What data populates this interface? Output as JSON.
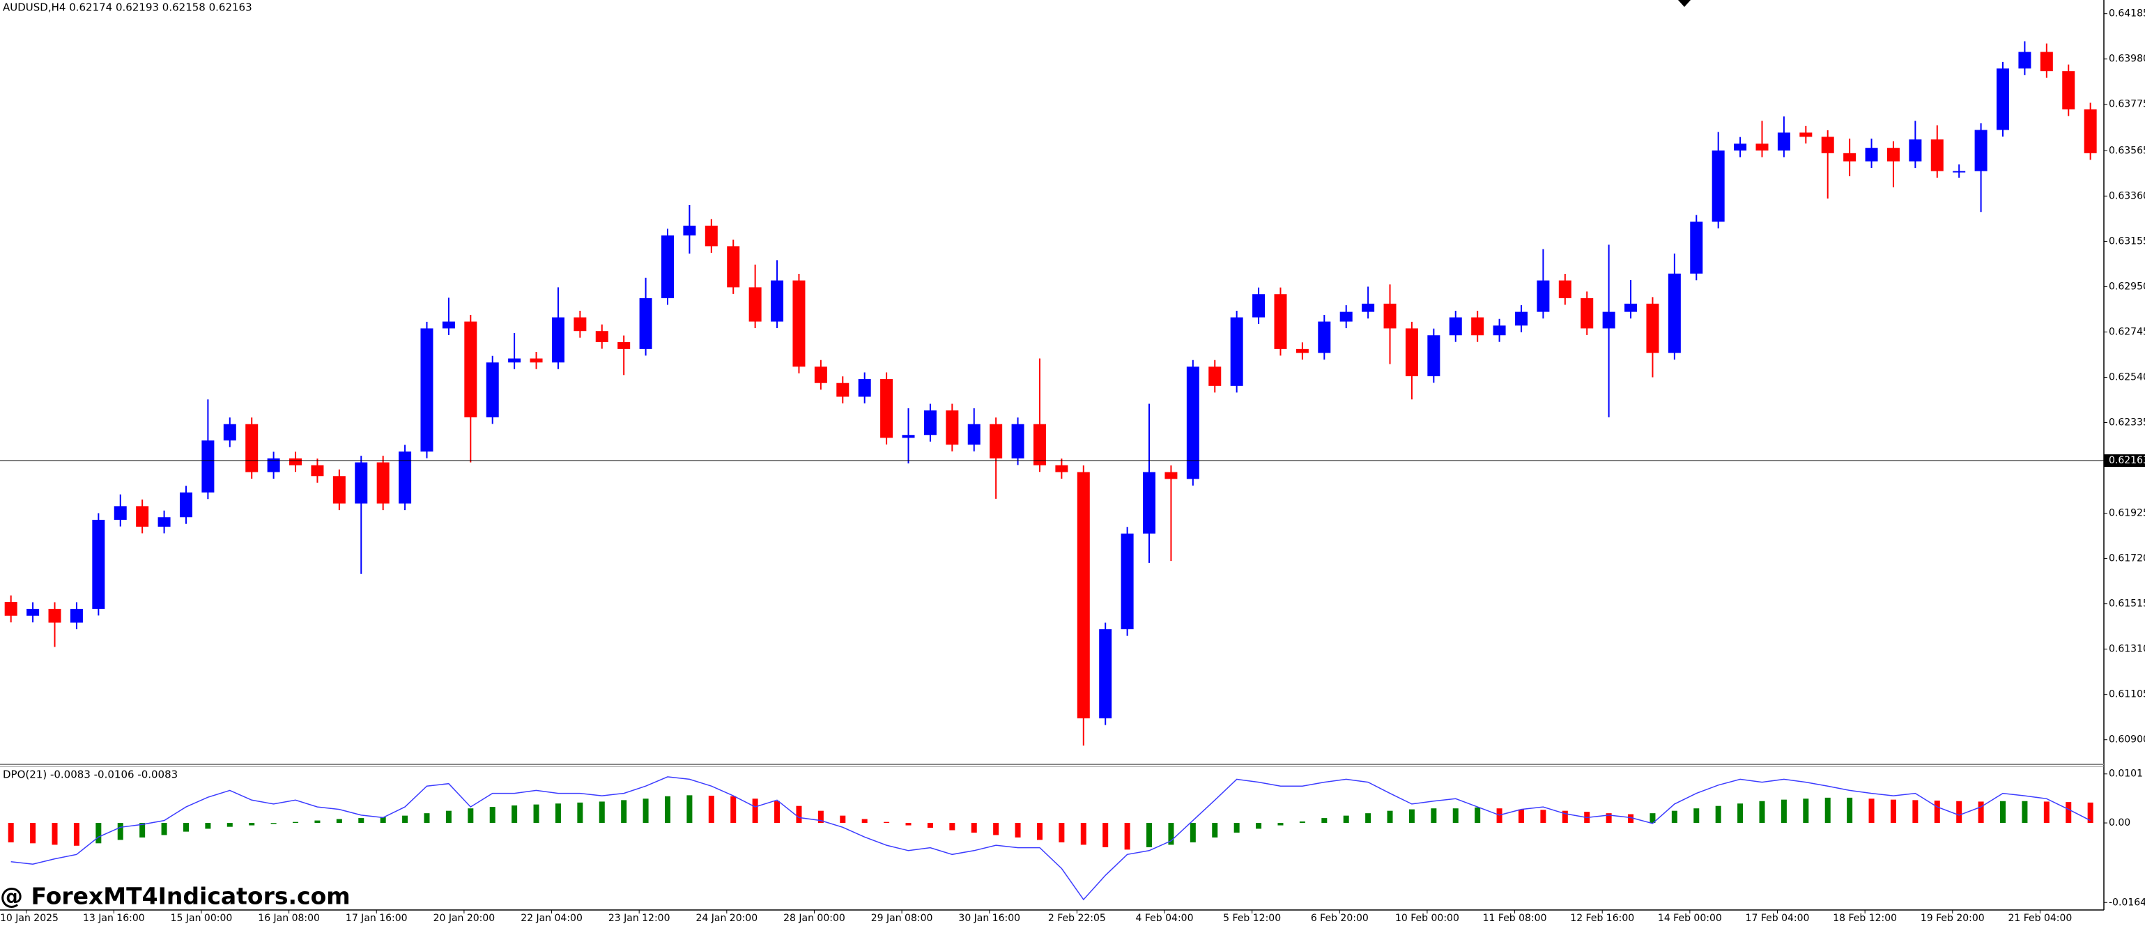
{
  "chart_data": [
    {
      "type": "candlestick",
      "title": "AUDUSD,H4  0.62174 0.62193 0.62158 0.62163",
      "up_color": "#0000ff",
      "down_color": "#ff0000",
      "first_open": 0.61523,
      "close": [
        0.61461,
        0.61492,
        0.6143,
        0.61492,
        0.61895,
        0.61957,
        0.61864,
        0.61907,
        0.62019,
        0.62254,
        0.62328,
        0.62111,
        0.62173,
        0.62142,
        0.62093,
        0.61969,
        0.62155,
        0.61969,
        0.62204,
        0.62761,
        0.62792,
        0.62359,
        0.62607,
        0.62625,
        0.62607,
        0.62811,
        0.62749,
        0.62699,
        0.62668,
        0.62898,
        0.63182,
        0.63226,
        0.63133,
        0.62947,
        0.62792,
        0.62978,
        0.62588,
        0.62514,
        0.62452,
        0.62532,
        0.62266,
        0.62279,
        0.6239,
        0.62235,
        0.62328,
        0.62173,
        0.62328,
        0.62142,
        0.62111,
        0.60997,
        0.614,
        0.61833,
        0.62111,
        0.6208,
        0.62588,
        0.62501,
        0.62811,
        0.62916,
        0.62668,
        0.6265,
        0.62792,
        0.62836,
        0.62873,
        0.62761,
        0.62545,
        0.6273,
        0.62811,
        0.6273,
        0.62774,
        0.62836,
        0.62978,
        0.62898,
        0.62761,
        0.62836,
        0.62873,
        0.6265,
        0.63009,
        0.63244,
        0.63566,
        0.63597,
        0.63566,
        0.63647,
        0.63628,
        0.63554,
        0.63517,
        0.63578,
        0.63517,
        0.63616,
        0.63473,
        0.63473,
        0.63659,
        0.63937,
        0.64012,
        0.63925,
        0.63752,
        0.63554
      ],
      "high": [
        0.61553,
        0.61522,
        0.61522,
        0.61522,
        0.61925,
        0.6201,
        0.61987,
        0.61937,
        0.62049,
        0.6244,
        0.62358,
        0.62358,
        0.62203,
        0.62203,
        0.62172,
        0.62123,
        0.62185,
        0.62185,
        0.62234,
        0.62791,
        0.629,
        0.62822,
        0.62637,
        0.6274,
        0.62655,
        0.62947,
        0.62841,
        0.62779,
        0.62729,
        0.6299,
        0.63212,
        0.6332,
        0.63256,
        0.63163,
        0.6305,
        0.6307,
        0.63008,
        0.62618,
        0.62544,
        0.62562,
        0.62562,
        0.624,
        0.6242,
        0.6242,
        0.624,
        0.62358,
        0.62358,
        0.62625,
        0.62172,
        0.62141,
        0.6143,
        0.61863,
        0.6242,
        0.62141,
        0.62618,
        0.62618,
        0.62841,
        0.62946,
        0.62946,
        0.62698,
        0.62822,
        0.62866,
        0.6295,
        0.6296,
        0.62791,
        0.6276,
        0.62841,
        0.62841,
        0.62804,
        0.62866,
        0.6312,
        0.63008,
        0.62928,
        0.6314,
        0.6298,
        0.62903,
        0.631,
        0.63274,
        0.6365,
        0.63627,
        0.637,
        0.6372,
        0.63677,
        0.63658,
        0.6362,
        0.6362,
        0.63608,
        0.637,
        0.6368,
        0.63503,
        0.63689,
        0.63967,
        0.6406,
        0.6405,
        0.63955,
        0.63782
      ],
      "low": [
        0.61431,
        0.61431,
        0.6132,
        0.614,
        0.61462,
        0.61865,
        0.61834,
        0.61834,
        0.61877,
        0.61989,
        0.62224,
        0.62081,
        0.62081,
        0.62112,
        0.62063,
        0.61939,
        0.6165,
        0.61939,
        0.61939,
        0.62174,
        0.62731,
        0.62155,
        0.62329,
        0.62577,
        0.62577,
        0.62577,
        0.62719,
        0.62669,
        0.6255,
        0.62638,
        0.62868,
        0.631,
        0.63103,
        0.62917,
        0.62762,
        0.62762,
        0.62558,
        0.62484,
        0.62422,
        0.62422,
        0.62236,
        0.6215,
        0.62249,
        0.62205,
        0.62205,
        0.6199,
        0.62143,
        0.62112,
        0.62081,
        0.60874,
        0.60967,
        0.6137,
        0.617,
        0.61709,
        0.6205,
        0.62471,
        0.62471,
        0.62781,
        0.62638,
        0.6262,
        0.6262,
        0.62762,
        0.62806,
        0.626,
        0.6244,
        0.62515,
        0.627,
        0.627,
        0.627,
        0.62744,
        0.62806,
        0.62868,
        0.62731,
        0.62359,
        0.62806,
        0.6254,
        0.6262,
        0.62979,
        0.63214,
        0.63536,
        0.63536,
        0.63536,
        0.63598,
        0.63349,
        0.6345,
        0.63487,
        0.634,
        0.63487,
        0.63443,
        0.63443,
        0.63288,
        0.63629,
        0.63907,
        0.63895,
        0.63722,
        0.63524
      ],
      "categories": [
        "10 Jan 2025",
        null,
        null,
        null,
        "13 Jan 16:00",
        null,
        null,
        null,
        "15 Jan 00:00",
        null,
        null,
        null,
        "16 Jan 08:00",
        null,
        null,
        null,
        "17 Jan 16:00",
        null,
        null,
        null,
        "20 Jan 20:00",
        null,
        null,
        null,
        "22 Jan 04:00",
        null,
        null,
        null,
        "23 Jan 12:00",
        null,
        null,
        null,
        "24 Jan 20:00",
        null,
        null,
        null,
        "28 Jan 00:00",
        null,
        null,
        null,
        "29 Jan 08:00",
        null,
        null,
        null,
        "30 Jan 16:00",
        null,
        null,
        null,
        "2 Feb 22:05",
        null,
        null,
        null,
        "4 Feb 04:00",
        null,
        null,
        null,
        "5 Feb 12:00",
        null,
        null,
        null,
        "6 Feb 20:00",
        null,
        null,
        null,
        "10 Feb 00:00",
        null,
        null,
        null,
        "11 Feb 08:00",
        null,
        null,
        null,
        "12 Feb 16:00",
        null,
        null,
        null,
        "14 Feb 00:00",
        null,
        null,
        null,
        "17 Feb 04:00",
        null,
        null,
        null,
        "18 Feb 12:00",
        null,
        null,
        null,
        "19 Feb 20:00",
        null,
        null,
        null,
        "21 Feb 04:00",
        null,
        null,
        null
      ],
      "ylim": [
        0.60795,
        0.64247
      ],
      "yticks": [
        0.64185,
        {
          "value": 0.6398,
          "label": "0.63980"
        },
        0.63775,
        0.63565,
        {
          "value": 0.6336,
          "label": "0.63360"
        },
        0.63155,
        {
          "value": 0.6295,
          "label": "0.62950"
        },
        0.62745,
        {
          "value": 0.6254,
          "label": "0.62540"
        },
        0.62335,
        0.61925,
        {
          "value": 0.6172,
          "label": "0.61720"
        },
        0.61515,
        {
          "value": 0.6131,
          "label": "0.61310"
        },
        0.61105,
        {
          "value": 0.609,
          "label": "0.60900"
        }
      ],
      "current_price": 0.62163,
      "grid": false
    },
    {
      "type": "bar",
      "title": "DPO(21) -0.0083 -0.0106 -0.0083",
      "up_color": "#008000",
      "down_color": "#ff0000",
      "values": [
        -0.004,
        -0.0042,
        -0.0045,
        -0.0047,
        -0.0042,
        -0.0035,
        -0.003,
        -0.0025,
        -0.0018,
        -0.0012,
        -0.0008,
        -0.0005,
        -0.0002,
        0.0002,
        0.0005,
        0.0008,
        0.001,
        0.0012,
        0.0015,
        0.002,
        0.0025,
        0.003,
        0.0033,
        0.0036,
        0.0038,
        0.004,
        0.0042,
        0.0044,
        0.0047,
        0.005,
        0.0055,
        0.0057,
        0.0056,
        0.0055,
        0.005,
        0.0045,
        0.0035,
        0.0025,
        0.0015,
        0.0008,
        0.0002,
        -0.0005,
        -0.001,
        -0.0015,
        -0.002,
        -0.0025,
        -0.003,
        -0.0035,
        -0.004,
        -0.0045,
        -0.005,
        -0.0055,
        -0.005,
        -0.0045,
        -0.004,
        -0.003,
        -0.002,
        -0.0012,
        -0.0005,
        0.0003,
        0.001,
        0.0015,
        0.002,
        0.0025,
        0.0028,
        0.003,
        0.003,
        0.0032,
        0.003,
        0.0028,
        0.0027,
        0.0025,
        0.0023,
        0.002,
        0.0018,
        0.002,
        0.0025,
        0.003,
        0.0035,
        0.004,
        0.0045,
        0.0048,
        0.005,
        0.0052,
        0.0052,
        0.005,
        0.0048,
        0.0047,
        0.0046,
        0.0045,
        0.0044,
        0.0045,
        0.0045,
        0.0044,
        0.0043,
        0.0042
      ],
      "line": {
        "color": "#3c3cff",
        "values": [
          -0.008,
          -0.0085,
          -0.0074,
          -0.0065,
          -0.0029,
          -0.0009,
          -0.0003,
          0.0005,
          0.0033,
          0.0053,
          0.0067,
          0.0047,
          0.0039,
          0.0047,
          0.0033,
          0.0028,
          0.0016,
          0.0011,
          0.0033,
          0.0076,
          0.0081,
          0.0033,
          0.0061,
          0.0061,
          0.0067,
          0.0061,
          0.0061,
          0.0056,
          0.0061,
          0.0076,
          0.0095,
          0.009,
          0.0076,
          0.0056,
          0.0033,
          0.0047,
          0.0011,
          0.0005,
          -0.0009,
          -0.0029,
          -0.0046,
          -0.0057,
          -0.0051,
          -0.0065,
          -0.0057,
          -0.0046,
          -0.0051,
          -0.0051,
          -0.0094,
          -0.0158,
          -0.0108,
          -0.0065,
          -0.0057,
          -0.0037,
          0.0005,
          0.0047,
          0.009,
          0.0084,
          0.0076,
          0.0076,
          0.0084,
          0.009,
          0.0084,
          0.0061,
          0.0039,
          0.0045,
          0.005,
          0.0033,
          0.0016,
          0.0028,
          0.0033,
          0.0019,
          0.0011,
          0.0016,
          0.0011,
          -0.0001,
          0.0039,
          0.0061,
          0.0078,
          0.009,
          0.0084,
          0.009,
          0.0084,
          0.0076,
          0.0067,
          0.0061,
          0.0056,
          0.0061,
          0.0033,
          0.0016,
          0.0033,
          0.0061,
          0.0056,
          0.005,
          0.0028,
          0.0005
        ]
      },
      "ylim": [
        -0.0178,
        0.0115
      ],
      "yticks": [
        0.0101,
        {
          "value": 0,
          "label": "0.00"
        },
        -0.0164
      ]
    }
  ],
  "watermark": "@ ForexMT4Indicators.com"
}
